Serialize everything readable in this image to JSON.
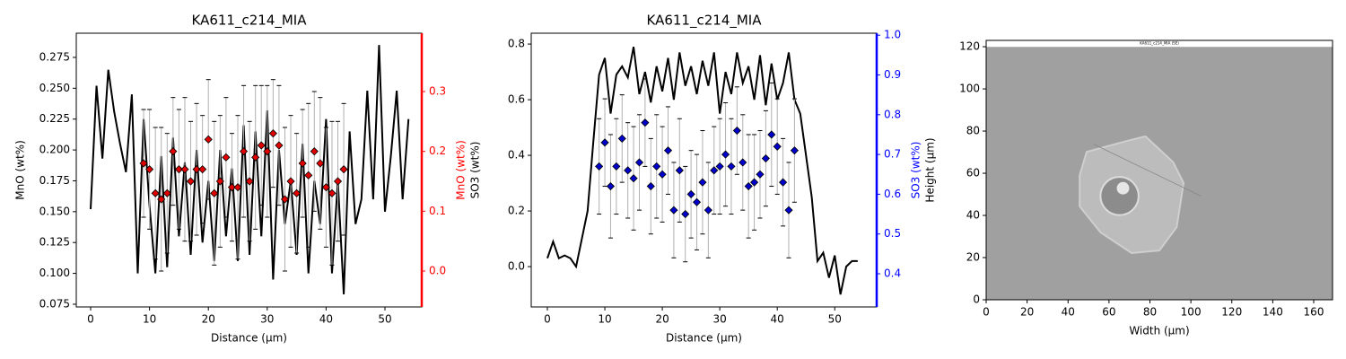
{
  "chart_data": [
    {
      "type": "line",
      "title": "KA611_c214_MIA",
      "xlabel": "Distance (µm)",
      "ylabel": "MnO (wt%)",
      "y2label": "MnO (wt%)",
      "xlim": [
        -2.44,
        56.25
      ],
      "xticks": [
        0,
        10,
        20,
        30,
        40,
        50
      ],
      "ylim": [
        0.0728,
        0.2946
      ],
      "yticks": [
        0.075,
        {
          "value": 0.1,
          "label": "0.100"
        },
        0.125,
        {
          "value": 0.15,
          "label": "0.150"
        },
        0.175,
        {
          "value": 0.2,
          "label": "0.200"
        },
        0.225,
        {
          "value": 0.25,
          "label": "0.250"
        },
        0.275
      ],
      "y2lim": [
        -0.06,
        0.3975
      ],
      "y2ticks": [
        {
          "value": 0,
          "label": "0.0"
        },
        0.1,
        0.2,
        0.3
      ],
      "y2color": "#ff0000",
      "series": [
        {
          "color": "#000000",
          "x": [
            0,
            1,
            2,
            3,
            4,
            5,
            6,
            7,
            8,
            9,
            10,
            11,
            12,
            13,
            14,
            15,
            16,
            17,
            18,
            19,
            20,
            21,
            22,
            23,
            24,
            25,
            26,
            27,
            28,
            29,
            30,
            31,
            32,
            33,
            34,
            35,
            36,
            37,
            38,
            39,
            40,
            41,
            42,
            43,
            44,
            45,
            46,
            47,
            48,
            49,
            50,
            51,
            52,
            53,
            54
          ],
          "values": [
            0.152,
            0.252,
            0.193,
            0.265,
            0.231,
            0.205,
            0.182,
            0.245,
            0.1,
            0.225,
            0.155,
            0.1,
            0.195,
            0.105,
            0.21,
            0.13,
            0.19,
            0.115,
            0.2,
            0.125,
            0.175,
            0.11,
            0.2,
            0.13,
            0.185,
            0.11,
            0.22,
            0.115,
            0.215,
            0.13,
            0.232,
            0.095,
            0.2,
            0.14,
            0.175,
            0.115,
            0.205,
            0.1,
            0.175,
            0.14,
            0.225,
            0.1,
            0.175,
            0.083,
            0.215,
            0.14,
            0.16,
            0.248,
            0.16,
            0.285,
            0.15,
            0.195,
            0.248,
            0.16,
            0.225
          ]
        },
        {
          "type": "scatter",
          "axis": "y2",
          "color": "#e00000",
          "x": [
            9,
            10,
            11,
            12,
            13,
            14,
            15,
            16,
            17,
            18,
            19,
            20,
            21,
            22,
            23,
            24,
            25,
            26,
            27,
            28,
            29,
            30,
            31,
            32,
            33,
            34,
            35,
            36,
            37,
            38,
            39,
            40,
            41,
            42,
            43
          ],
          "values": [
            0.18,
            0.17,
            0.13,
            0.12,
            0.13,
            0.2,
            0.17,
            0.17,
            0.15,
            0.17,
            0.17,
            0.22,
            0.13,
            0.15,
            0.19,
            0.14,
            0.14,
            0.2,
            0.15,
            0.19,
            0.21,
            0.2,
            0.23,
            0.21,
            0.12,
            0.15,
            0.13,
            0.18,
            0.16,
            0.2,
            0.18,
            0.14,
            0.13,
            0.15,
            0.17
          ],
          "errors": [
            0.09,
            0.1,
            0.11,
            0.12,
            0.1,
            0.09,
            0.1,
            0.12,
            0.1,
            0.11,
            0.09,
            0.1,
            0.12,
            0.11,
            0.1,
            0.09,
            0.12,
            0.11,
            0.1,
            0.12,
            0.1,
            0.11,
            0.09,
            0.1,
            0.12,
            0.11,
            0.1,
            0.09,
            0.12,
            0.1,
            0.11,
            0.1,
            0.12,
            0.1,
            0.11
          ]
        }
      ]
    },
    {
      "type": "line",
      "title": "KA611_c214_MIA",
      "xlabel": "Distance (µm)",
      "ylabel": "SO3 (wt%)",
      "y2label": "SO3 (wt%)",
      "xlim": [
        -2.81,
        57.3
      ],
      "xticks": [
        0,
        10,
        20,
        30,
        40,
        50
      ],
      "ylim": [
        -0.145,
        0.839
      ],
      "yticks": [
        {
          "value": 0,
          "label": "0.0"
        },
        0.2,
        0.4,
        0.6,
        0.8
      ],
      "y2lim": [
        0.3165,
        1.005
      ],
      "y2ticks": [
        0.4,
        0.5,
        0.6,
        0.7,
        0.8,
        0.9,
        {
          "value": 1,
          "label": "1.0"
        }
      ],
      "y2color": "#0000ff",
      "series": [
        {
          "color": "#000000",
          "x": [
            0,
            1,
            2,
            3,
            4,
            5,
            6,
            7,
            8,
            9,
            10,
            11,
            12,
            13,
            14,
            15,
            16,
            17,
            18,
            19,
            20,
            21,
            22,
            23,
            24,
            25,
            26,
            27,
            28,
            29,
            30,
            31,
            32,
            33,
            34,
            35,
            36,
            37,
            38,
            39,
            40,
            41,
            42,
            43,
            44,
            45,
            46,
            47,
            48,
            49,
            50,
            51,
            52,
            53,
            54
          ],
          "values": [
            0.03,
            0.09,
            0.03,
            0.04,
            0.03,
            0,
            0.1,
            0.2,
            0.45,
            0.69,
            0.75,
            0.55,
            0.69,
            0.72,
            0.68,
            0.79,
            0.62,
            0.7,
            0.59,
            0.72,
            0.63,
            0.75,
            0.6,
            0.77,
            0.65,
            0.72,
            0.62,
            0.74,
            0.65,
            0.77,
            0.55,
            0.7,
            0.62,
            0.77,
            0.66,
            0.72,
            0.6,
            0.76,
            0.58,
            0.73,
            0.6,
            0.66,
            0.77,
            0.6,
            0.55,
            0.4,
            0.25,
            0.02,
            0.05,
            -0.04,
            0.04,
            -0.1,
            0,
            0.02,
            0.02
          ]
        },
        {
          "type": "scatter",
          "axis": "y2",
          "color": "#0000cc",
          "x": [
            9,
            10,
            11,
            12,
            13,
            14,
            15,
            16,
            17,
            18,
            19,
            20,
            21,
            22,
            23,
            24,
            25,
            26,
            27,
            28,
            29,
            30,
            31,
            32,
            33,
            34,
            35,
            36,
            37,
            38,
            39,
            40,
            41,
            42,
            43
          ],
          "values": [
            0.67,
            0.73,
            0.62,
            0.67,
            0.74,
            0.66,
            0.64,
            0.68,
            0.78,
            0.62,
            0.67,
            0.65,
            0.71,
            0.56,
            0.66,
            0.55,
            0.6,
            0.58,
            0.63,
            0.56,
            0.66,
            0.67,
            0.7,
            0.67,
            0.76,
            0.68,
            0.62,
            0.63,
            0.65,
            0.69,
            0.75,
            0.72,
            0.63,
            0.56,
            0.71
          ],
          "errors": [
            0.12,
            0.11,
            0.13,
            0.12,
            0.11,
            0.12,
            0.13,
            0.12,
            0.11,
            0.12,
            0.13,
            0.12,
            0.11,
            0.12,
            0.13,
            0.12,
            0.11,
            0.12,
            0.13,
            0.12,
            0.11,
            0.12,
            0.13,
            0.12,
            0.11,
            0.12,
            0.13,
            0.12,
            0.11,
            0.12,
            0.13,
            0.12,
            0.11,
            0.12,
            0.13
          ]
        }
      ]
    },
    {
      "type": "image",
      "xlabel": "Width (µm)",
      "ylabel": "Height (µm)",
      "image_label": "KA611_c214_MIA (SE)",
      "xlim": [
        0,
        169.2
      ],
      "xticks": [
        0,
        20,
        40,
        60,
        80,
        100,
        120,
        140,
        160
      ],
      "ylim": [
        0,
        123
      ],
      "yticks": [
        0,
        20,
        40,
        60,
        80,
        100,
        120
      ]
    }
  ]
}
